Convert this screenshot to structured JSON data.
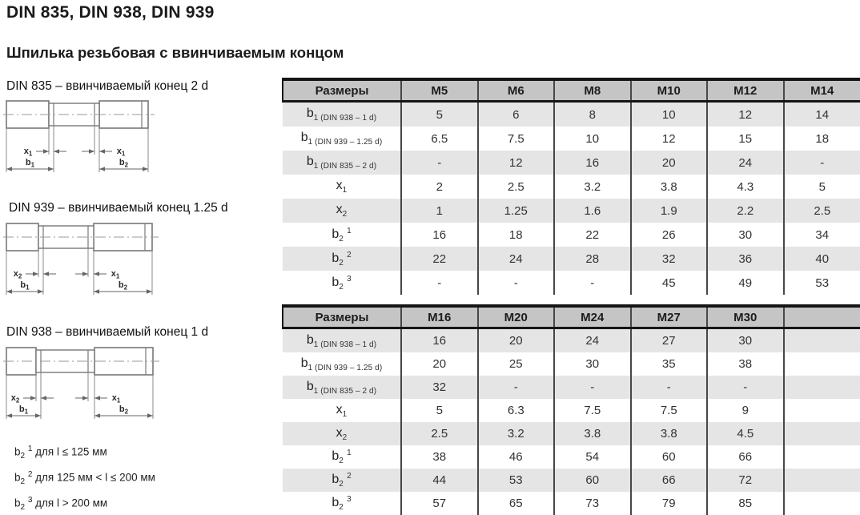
{
  "page": {
    "title": "DIN 835, DIN 938, DIN 939",
    "subtitle": "Шпилька резьбовая с ввинчиваемым концом"
  },
  "drawings": [
    {
      "caption": "DIN 835 – ввинчиваемый конец 2 d",
      "dims": {
        "top_left": {
          "base": "x",
          "sub": "1"
        },
        "top_right": {
          "base": "x",
          "sub": "1"
        },
        "bottom_left": {
          "base": "b",
          "sub": "1"
        },
        "bottom_right": {
          "base": "b",
          "sub": "2"
        }
      }
    },
    {
      "caption": "DIN 939 – ввинчиваемый конец 1.25 d",
      "dims": {
        "top_left": {
          "base": "x",
          "sub": "2"
        },
        "top_right": {
          "base": "x",
          "sub": "1"
        },
        "bottom_left": {
          "base": "b",
          "sub": "1"
        },
        "bottom_right": {
          "base": "b",
          "sub": "2"
        }
      }
    },
    {
      "caption": "DIN 938 – ввинчиваемый конец 1 d",
      "dims": {
        "top_left": {
          "base": "x",
          "sub": "2"
        },
        "top_right": {
          "base": "x",
          "sub": "1"
        },
        "bottom_left": {
          "base": "b",
          "sub": "1"
        },
        "bottom_right": {
          "base": "b",
          "sub": "2"
        }
      }
    }
  ],
  "footnotes": [
    {
      "base": "b",
      "sub": "2",
      "sup": "1",
      "text": "для l ≤ 125 мм"
    },
    {
      "base": "b",
      "sub": "2",
      "sup": "2",
      "text": "для 125 мм < l ≤ 200 мм"
    },
    {
      "base": "b",
      "sub": "2",
      "sup": "3",
      "text": "для l > 200 мм"
    }
  ],
  "tables": [
    {
      "header": [
        "Размеры",
        "M5",
        "M6",
        "M8",
        "M10",
        "M12",
        "M14"
      ],
      "rows": [
        {
          "label": {
            "base": "b",
            "sub": "1 (DIN 938 – 1 d)"
          },
          "values": [
            "5",
            "6",
            "8",
            "10",
            "12",
            "14"
          ]
        },
        {
          "label": {
            "base": "b",
            "sub": "1 (DIN 939 – 1.25 d)"
          },
          "values": [
            "6.5",
            "7.5",
            "10",
            "12",
            "15",
            "18"
          ]
        },
        {
          "label": {
            "base": "b",
            "sub": "1 (DIN 835 – 2 d)"
          },
          "values": [
            "-",
            "12",
            "16",
            "20",
            "24",
            "-"
          ]
        },
        {
          "label": {
            "base": "x",
            "sub": "1"
          },
          "values": [
            "2",
            "2.5",
            "3.2",
            "3.8",
            "4.3",
            "5"
          ]
        },
        {
          "label": {
            "base": "x",
            "sub": "2"
          },
          "values": [
            "1",
            "1.25",
            "1.6",
            "1.9",
            "2.2",
            "2.5"
          ]
        },
        {
          "label": {
            "base": "b",
            "sub": "2",
            "sup": "1"
          },
          "values": [
            "16",
            "18",
            "22",
            "26",
            "30",
            "34"
          ]
        },
        {
          "label": {
            "base": "b",
            "sub": "2",
            "sup": "2"
          },
          "values": [
            "22",
            "24",
            "28",
            "32",
            "36",
            "40"
          ]
        },
        {
          "label": {
            "base": "b",
            "sub": "2",
            "sup": "3"
          },
          "values": [
            "-",
            "-",
            "-",
            "45",
            "49",
            "53"
          ]
        }
      ]
    },
    {
      "header": [
        "Размеры",
        "M16",
        "M20",
        "M24",
        "M27",
        "M30",
        ""
      ],
      "rows": [
        {
          "label": {
            "base": "b",
            "sub": "1 (DIN 938 – 1 d)"
          },
          "values": [
            "16",
            "20",
            "24",
            "27",
            "30",
            ""
          ]
        },
        {
          "label": {
            "base": "b",
            "sub": "1 (DIN 939 – 1.25 d)"
          },
          "values": [
            "20",
            "25",
            "30",
            "35",
            "38",
            ""
          ]
        },
        {
          "label": {
            "base": "b",
            "sub": "1 (DIN 835 – 2 d)"
          },
          "values": [
            "32",
            "-",
            "-",
            "-",
            "-",
            ""
          ]
        },
        {
          "label": {
            "base": "x",
            "sub": "1"
          },
          "values": [
            "5",
            "6.3",
            "7.5",
            "7.5",
            "9",
            ""
          ]
        },
        {
          "label": {
            "base": "x",
            "sub": "2"
          },
          "values": [
            "2.5",
            "3.2",
            "3.8",
            "3.8",
            "4.5",
            ""
          ]
        },
        {
          "label": {
            "base": "b",
            "sub": "2",
            "sup": "1"
          },
          "values": [
            "38",
            "46",
            "54",
            "60",
            "66",
            ""
          ]
        },
        {
          "label": {
            "base": "b",
            "sub": "2",
            "sup": "2"
          },
          "values": [
            "44",
            "53",
            "60",
            "66",
            "72",
            ""
          ]
        },
        {
          "label": {
            "base": "b",
            "sub": "2",
            "sup": "3"
          },
          "values": [
            "57",
            "65",
            "73",
            "79",
            "85",
            ""
          ]
        }
      ]
    }
  ],
  "colors": {
    "header_bg": "#c5c5c5",
    "stripe_bg": "#e5e5e5",
    "table_border": "#151515",
    "grid_line": "#474747",
    "drawing_line": "#777777"
  }
}
